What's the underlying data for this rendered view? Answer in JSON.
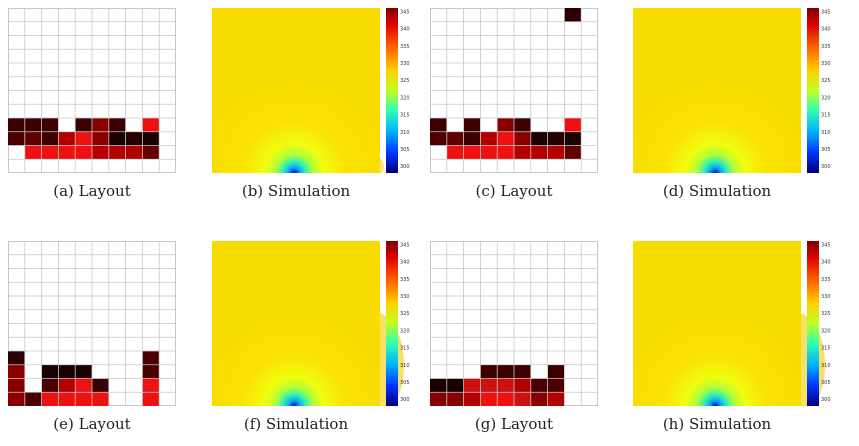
{
  "figure": {
    "panels": [
      {
        "id": "a",
        "kind": "layout",
        "caption": "(a)  Layout",
        "column": 0,
        "row": 0
      },
      {
        "id": "b",
        "kind": "simulation",
        "caption": "(b)  Simulation",
        "column": 1,
        "row": 0,
        "contours": "center"
      },
      {
        "id": "c",
        "kind": "layout",
        "caption": "(c)  Layout",
        "column": 2,
        "row": 0
      },
      {
        "id": "d",
        "kind": "simulation",
        "caption": "(d)  Simulation",
        "column": 3,
        "row": 0,
        "contours": "center-left"
      },
      {
        "id": "e",
        "kind": "layout",
        "caption": "(e)  Layout",
        "column": 0,
        "row": 1
      },
      {
        "id": "f",
        "kind": "simulation",
        "caption": "(f)  Simulation",
        "column": 1,
        "row": 1,
        "contours": "center-both"
      },
      {
        "id": "g",
        "kind": "layout",
        "caption": "(g)  Layout",
        "column": 2,
        "row": 1
      },
      {
        "id": "h",
        "kind": "simulation",
        "caption": "(h)  Simulation",
        "column": 3,
        "row": 1,
        "contours": "center-right"
      }
    ],
    "colorbar_ticks": [
      "345",
      "340",
      "335",
      "330",
      "325",
      "320",
      "315",
      "310",
      "305",
      "300"
    ],
    "colorbar_range": [
      298,
      346
    ],
    "grid_size": 10,
    "layouts": {
      "a": [
        [
          8,
          0,
          "#3d0000"
        ],
        [
          8,
          1,
          "#3d0000"
        ],
        [
          8,
          2,
          "#3d0000"
        ],
        [
          8,
          4,
          "#3d0000"
        ],
        [
          8,
          5,
          "#8a0000"
        ],
        [
          8,
          6,
          "#3d0000"
        ],
        [
          8,
          8,
          "#ee1111"
        ],
        [
          9,
          0,
          "#4a0000"
        ],
        [
          9,
          1,
          "#600000"
        ],
        [
          9,
          2,
          "#3d0000"
        ],
        [
          9,
          3,
          "#b30000"
        ],
        [
          9,
          4,
          "#ee1111"
        ],
        [
          9,
          5,
          "#8a0000"
        ],
        [
          9,
          6,
          "#1a0000"
        ],
        [
          9,
          7,
          "#260000"
        ],
        [
          9,
          8,
          "#1a0000"
        ],
        [
          10,
          1,
          "#ee1111"
        ],
        [
          10,
          2,
          "#ee1111"
        ],
        [
          10,
          3,
          "#ee1111"
        ],
        [
          10,
          4,
          "#ee1111"
        ],
        [
          10,
          5,
          "#b30000"
        ],
        [
          10,
          6,
          "#b30000"
        ],
        [
          10,
          7,
          "#b30000"
        ],
        [
          10,
          8,
          "#600000"
        ]
      ],
      "c": [
        [
          0,
          8,
          "#2b0000"
        ],
        [
          8,
          0,
          "#3d0000"
        ],
        [
          8,
          2,
          "#3d0000"
        ],
        [
          8,
          4,
          "#8a0000"
        ],
        [
          8,
          5,
          "#3d0000"
        ],
        [
          8,
          8,
          "#ee1111"
        ],
        [
          9,
          0,
          "#4a0000"
        ],
        [
          9,
          1,
          "#600000"
        ],
        [
          9,
          2,
          "#3d0000"
        ],
        [
          9,
          3,
          "#b30000"
        ],
        [
          9,
          4,
          "#ee1111"
        ],
        [
          9,
          5,
          "#8a0000"
        ],
        [
          9,
          6,
          "#1a0000"
        ],
        [
          9,
          7,
          "#260000"
        ],
        [
          9,
          8,
          "#1a0000"
        ],
        [
          10,
          1,
          "#ee1111"
        ],
        [
          10,
          2,
          "#ee1111"
        ],
        [
          10,
          3,
          "#ee1111"
        ],
        [
          10,
          4,
          "#ee1111"
        ],
        [
          10,
          5,
          "#b30000"
        ],
        [
          10,
          6,
          "#b30000"
        ],
        [
          10,
          7,
          "#b30000"
        ],
        [
          10,
          8,
          "#600000"
        ]
      ],
      "e": [
        [
          8,
          0,
          "#2b0000"
        ],
        [
          8,
          8,
          "#4a0000"
        ],
        [
          9,
          0,
          "#8a0000"
        ],
        [
          9,
          2,
          "#1a0000"
        ],
        [
          9,
          3,
          "#1a0000"
        ],
        [
          9,
          4,
          "#1a0000"
        ],
        [
          9,
          8,
          "#4a0000"
        ],
        [
          10,
          0,
          "#8a0000"
        ],
        [
          10,
          2,
          "#4a0000"
        ],
        [
          10,
          3,
          "#b30000"
        ],
        [
          10,
          4,
          "#ee1111"
        ],
        [
          10,
          5,
          "#3d0000"
        ],
        [
          10,
          8,
          "#ee1111"
        ],
        [
          11,
          0,
          "#8a0000"
        ],
        [
          11,
          1,
          "#4a0000"
        ],
        [
          11,
          2,
          "#ee1111"
        ],
        [
          11,
          3,
          "#ee1111"
        ],
        [
          11,
          4,
          "#ee1111"
        ],
        [
          11,
          5,
          "#ee1111"
        ],
        [
          11,
          8,
          "#ee1111"
        ]
      ],
      "g": [
        [
          9,
          3,
          "#3d0000"
        ],
        [
          9,
          4,
          "#3d0000"
        ],
        [
          9,
          5,
          "#3d0000"
        ],
        [
          9,
          7,
          "#3d0000"
        ],
        [
          10,
          0,
          "#1a0000"
        ],
        [
          10,
          1,
          "#1a0000"
        ],
        [
          10,
          2,
          "#cc1111"
        ],
        [
          10,
          3,
          "#cc1111"
        ],
        [
          10,
          4,
          "#cc1111"
        ],
        [
          10,
          5,
          "#b30000"
        ],
        [
          10,
          6,
          "#4a0000"
        ],
        [
          10,
          7,
          "#4a0000"
        ],
        [
          11,
          0,
          "#8a0000"
        ],
        [
          11,
          1,
          "#8a0000"
        ],
        [
          11,
          2,
          "#b30000"
        ],
        [
          11,
          3,
          "#ee1111"
        ],
        [
          11,
          4,
          "#ee1111"
        ],
        [
          11,
          5,
          "#cc1111"
        ],
        [
          11,
          6,
          "#8a0000"
        ],
        [
          11,
          7,
          "#b30000"
        ]
      ]
    }
  }
}
